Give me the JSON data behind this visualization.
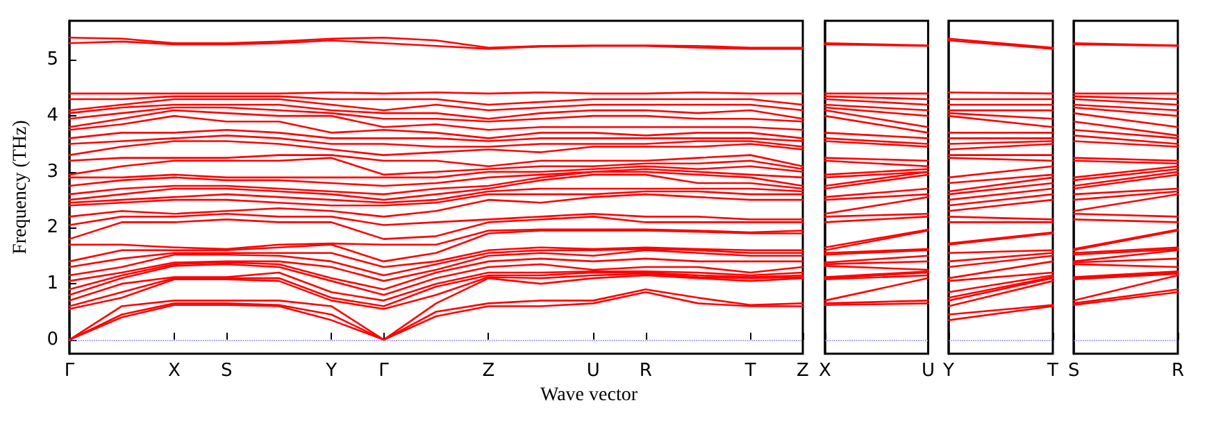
{
  "chart_data": [
    {
      "type": "line",
      "ylabel": "Frequency (THz)",
      "xlabel": "Wave vector",
      "categories": [
        "Γ",
        null,
        "X",
        "S",
        null,
        "Y",
        "Γ",
        null,
        "Z",
        null,
        "U",
        "R",
        null,
        "T",
        "Z"
      ],
      "ylim": [
        -0.25,
        5.7
      ],
      "yticks": [
        0,
        1,
        2,
        3,
        4,
        5
      ],
      "ref_lines": [
        {
          "axis": "y",
          "value": 0,
          "label": null,
          "color": "#7777ee",
          "line_style": "dotted"
        }
      ],
      "series": [
        {
          "color": "#ff0000",
          "values": [
            0,
            0.4,
            0.62,
            0.62,
            0.6,
            0.35,
            0,
            0.42,
            0.6,
            0.6,
            0.65,
            0.85,
            0.65,
            0.6,
            0.6
          ]
        },
        {
          "color": "#ff0000",
          "values": [
            0,
            0.45,
            0.65,
            0.65,
            0.62,
            0.45,
            0,
            0.5,
            0.65,
            0.7,
            0.7,
            0.9,
            0.75,
            0.62,
            0.65
          ]
        },
        {
          "color": "#ff0000",
          "values": [
            0,
            0.6,
            0.7,
            0.7,
            0.7,
            0.6,
            0,
            0.65,
            1.1,
            1.0,
            1.1,
            1.15,
            1.1,
            1.05,
            1.1
          ]
        },
        {
          "color": "#ff0000",
          "values": [
            0.55,
            0.75,
            1.08,
            1.08,
            1.05,
            0.7,
            0.55,
            0.8,
            1.12,
            1.1,
            1.15,
            1.18,
            1.12,
            1.1,
            1.12
          ]
        },
        {
          "color": "#ff0000",
          "values": [
            0.6,
            0.85,
            1.1,
            1.1,
            1.1,
            0.75,
            0.6,
            0.95,
            1.15,
            1.15,
            1.2,
            1.2,
            1.15,
            1.12,
            1.15
          ]
        },
        {
          "color": "#ff0000",
          "values": [
            0.7,
            1.0,
            1.12,
            1.12,
            1.2,
            0.85,
            0.7,
            1.0,
            1.2,
            1.2,
            1.22,
            1.22,
            1.2,
            1.15,
            1.2
          ]
        },
        {
          "color": "#ff0000",
          "values": [
            0.8,
            1.1,
            1.32,
            1.35,
            1.3,
            1.05,
            0.8,
            1.1,
            1.3,
            1.35,
            1.25,
            1.3,
            1.3,
            1.2,
            1.3
          ]
        },
        {
          "color": "#ff0000",
          "values": [
            0.9,
            1.15,
            1.35,
            1.38,
            1.35,
            1.1,
            0.9,
            1.2,
            1.4,
            1.45,
            1.4,
            1.45,
            1.4,
            1.4,
            1.4
          ]
        },
        {
          "color": "#ff0000",
          "values": [
            1.05,
            1.2,
            1.38,
            1.4,
            1.4,
            1.3,
            1.05,
            1.25,
            1.5,
            1.55,
            1.5,
            1.6,
            1.55,
            1.5,
            1.5
          ]
        },
        {
          "color": "#ff0000",
          "values": [
            1.15,
            1.3,
            1.52,
            1.52,
            1.5,
            1.4,
            1.15,
            1.35,
            1.55,
            1.6,
            1.6,
            1.62,
            1.6,
            1.55,
            1.55
          ]
        },
        {
          "color": "#ff0000",
          "values": [
            1.3,
            1.45,
            1.55,
            1.55,
            1.55,
            1.55,
            1.3,
            1.4,
            1.6,
            1.65,
            1.62,
            1.65,
            1.62,
            1.6,
            1.6
          ]
        },
        {
          "color": "#ff0000",
          "values": [
            1.4,
            1.6,
            1.6,
            1.6,
            1.65,
            1.7,
            1.4,
            1.55,
            1.9,
            1.95,
            1.95,
            1.95,
            1.93,
            1.9,
            1.9
          ]
        },
        {
          "color": "#ff0000",
          "values": [
            1.7,
            1.7,
            1.65,
            1.62,
            1.7,
            1.72,
            1.7,
            1.7,
            1.95,
            1.97,
            1.97,
            1.97,
            1.95,
            1.92,
            1.95
          ]
        },
        {
          "color": "#ff0000",
          "values": [
            1.8,
            2.1,
            2.1,
            2.15,
            2.1,
            2.1,
            1.8,
            1.85,
            2.1,
            2.15,
            2.2,
            2.1,
            2.1,
            2.1,
            2.1
          ]
        },
        {
          "color": "#ff0000",
          "values": [
            2.05,
            2.2,
            2.2,
            2.25,
            2.2,
            2.2,
            2.05,
            2.1,
            2.15,
            2.2,
            2.25,
            2.2,
            2.2,
            2.15,
            2.15
          ]
        },
        {
          "color": "#ff0000",
          "values": [
            2.2,
            2.3,
            2.25,
            2.3,
            2.35,
            2.3,
            2.2,
            2.3,
            2.5,
            2.45,
            2.55,
            2.6,
            2.55,
            2.5,
            2.5
          ]
        },
        {
          "color": "#ff0000",
          "values": [
            2.4,
            2.45,
            2.5,
            2.5,
            2.45,
            2.4,
            2.4,
            2.45,
            2.6,
            2.6,
            2.6,
            2.65,
            2.65,
            2.6,
            2.6
          ]
        },
        {
          "color": "#ff0000",
          "values": [
            2.45,
            2.5,
            2.55,
            2.6,
            2.55,
            2.5,
            2.45,
            2.5,
            2.65,
            2.7,
            2.7,
            2.7,
            2.7,
            2.7,
            2.65
          ]
        },
        {
          "color": "#ff0000",
          "values": [
            2.5,
            2.6,
            2.7,
            2.7,
            2.65,
            2.6,
            2.5,
            2.6,
            2.7,
            2.85,
            2.95,
            2.95,
            2.8,
            2.8,
            2.7
          ]
        },
        {
          "color": "#ff0000",
          "values": [
            2.6,
            2.7,
            2.75,
            2.75,
            2.7,
            2.65,
            2.6,
            2.7,
            2.75,
            2.9,
            3.0,
            3.0,
            2.95,
            2.9,
            2.75
          ]
        },
        {
          "color": "#ff0000",
          "values": [
            2.75,
            2.85,
            2.9,
            2.85,
            2.85,
            2.8,
            2.75,
            2.8,
            2.9,
            2.95,
            3.0,
            3.05,
            3.0,
            2.95,
            2.9
          ]
        },
        {
          "color": "#ff0000",
          "values": [
            2.9,
            2.9,
            2.95,
            2.9,
            2.9,
            2.9,
            2.9,
            2.9,
            3.0,
            3.0,
            3.05,
            3.1,
            3.05,
            3.1,
            3.0
          ]
        },
        {
          "color": "#ff0000",
          "values": [
            2.95,
            3.1,
            3.2,
            3.2,
            3.2,
            3.25,
            2.95,
            3.0,
            3.05,
            3.1,
            3.1,
            3.15,
            3.15,
            3.2,
            3.05
          ]
        },
        {
          "color": "#ff0000",
          "values": [
            3.2,
            3.25,
            3.25,
            3.25,
            3.3,
            3.3,
            3.2,
            3.2,
            3.1,
            3.2,
            3.2,
            3.2,
            3.25,
            3.3,
            3.1
          ]
        },
        {
          "color": "#ff0000",
          "values": [
            3.3,
            3.45,
            3.55,
            3.55,
            3.5,
            3.4,
            3.3,
            3.35,
            3.4,
            3.35,
            3.45,
            3.45,
            3.45,
            3.5,
            3.4
          ]
        },
        {
          "color": "#ff0000",
          "values": [
            3.5,
            3.55,
            3.6,
            3.65,
            3.6,
            3.5,
            3.5,
            3.45,
            3.45,
            3.5,
            3.5,
            3.5,
            3.55,
            3.55,
            3.45
          ]
        },
        {
          "color": "#ff0000",
          "values": [
            3.6,
            3.7,
            3.7,
            3.75,
            3.7,
            3.6,
            3.6,
            3.6,
            3.55,
            3.6,
            3.6,
            3.6,
            3.6,
            3.6,
            3.55
          ]
        },
        {
          "color": "#ff0000",
          "values": [
            3.75,
            3.85,
            4.0,
            3.9,
            3.9,
            3.7,
            3.75,
            3.7,
            3.6,
            3.7,
            3.7,
            3.65,
            3.7,
            3.7,
            3.6
          ]
        },
        {
          "color": "#ff0000",
          "values": [
            3.8,
            3.95,
            4.1,
            4.05,
            4.0,
            4.0,
            3.8,
            3.85,
            3.75,
            3.8,
            3.8,
            3.8,
            3.8,
            3.8,
            3.75
          ]
        },
        {
          "color": "#ff0000",
          "values": [
            3.95,
            4.05,
            4.15,
            4.15,
            4.1,
            4.05,
            3.95,
            3.95,
            3.9,
            3.95,
            4.0,
            4.0,
            3.95,
            3.95,
            3.9
          ]
        },
        {
          "color": "#ff0000",
          "values": [
            4.05,
            4.15,
            4.2,
            4.2,
            4.2,
            4.1,
            4.05,
            4.05,
            3.95,
            4.05,
            4.1,
            4.1,
            4.05,
            4.1,
            3.95
          ]
        },
        {
          "color": "#ff0000",
          "values": [
            4.1,
            4.2,
            4.3,
            4.3,
            4.3,
            4.2,
            4.1,
            4.2,
            4.1,
            4.15,
            4.2,
            4.2,
            4.2,
            4.2,
            4.1
          ]
        },
        {
          "color": "#ff0000",
          "values": [
            4.3,
            4.3,
            4.35,
            4.35,
            4.35,
            4.3,
            4.3,
            4.3,
            4.2,
            4.25,
            4.3,
            4.3,
            4.3,
            4.3,
            4.2
          ]
        },
        {
          "color": "#ff0000",
          "values": [
            4.4,
            4.4,
            4.4,
            4.4,
            4.4,
            4.42,
            4.4,
            4.42,
            4.4,
            4.42,
            4.4,
            4.4,
            4.42,
            4.4,
            4.4
          ]
        },
        {
          "color": "#ff0000",
          "values": [
            5.3,
            5.33,
            5.28,
            5.28,
            5.3,
            5.35,
            5.3,
            5.25,
            5.2,
            5.24,
            5.25,
            5.25,
            5.22,
            5.2,
            5.2
          ]
        },
        {
          "color": "#ff0000",
          "values": [
            5.4,
            5.38,
            5.3,
            5.3,
            5.33,
            5.38,
            5.4,
            5.35,
            5.22,
            5.25,
            5.26,
            5.26,
            5.25,
            5.22,
            5.22
          ]
        }
      ]
    },
    {
      "type": "line",
      "tick_labels": "x",
      "categories": [
        "X",
        "U"
      ],
      "ylim": [
        -0.25,
        5.7
      ],
      "yticks": [
        0,
        1,
        2,
        3,
        4,
        5
      ],
      "ref_lines": [
        {
          "axis": "y",
          "value": 0,
          "label": null,
          "color": "#7777ee",
          "line_style": "dotted"
        }
      ],
      "series": [
        {
          "color": "#ff0000",
          "values": [
            0.62,
            0.65
          ]
        },
        {
          "color": "#ff0000",
          "values": [
            0.65,
            0.7
          ]
        },
        {
          "color": "#ff0000",
          "values": [
            0.7,
            1.1
          ]
        },
        {
          "color": "#ff0000",
          "values": [
            1.08,
            1.15
          ]
        },
        {
          "color": "#ff0000",
          "values": [
            1.1,
            1.2
          ]
        },
        {
          "color": "#ff0000",
          "values": [
            1.12,
            1.22
          ]
        },
        {
          "color": "#ff0000",
          "values": [
            1.32,
            1.25
          ]
        },
        {
          "color": "#ff0000",
          "values": [
            1.35,
            1.4
          ]
        },
        {
          "color": "#ff0000",
          "values": [
            1.38,
            1.5
          ]
        },
        {
          "color": "#ff0000",
          "values": [
            1.52,
            1.6
          ]
        },
        {
          "color": "#ff0000",
          "values": [
            1.55,
            1.62
          ]
        },
        {
          "color": "#ff0000",
          "values": [
            1.6,
            1.95
          ]
        },
        {
          "color": "#ff0000",
          "values": [
            1.65,
            1.97
          ]
        },
        {
          "color": "#ff0000",
          "values": [
            2.1,
            2.2
          ]
        },
        {
          "color": "#ff0000",
          "values": [
            2.2,
            2.25
          ]
        },
        {
          "color": "#ff0000",
          "values": [
            2.25,
            2.55
          ]
        },
        {
          "color": "#ff0000",
          "values": [
            2.5,
            2.6
          ]
        },
        {
          "color": "#ff0000",
          "values": [
            2.55,
            2.7
          ]
        },
        {
          "color": "#ff0000",
          "values": [
            2.7,
            2.95
          ]
        },
        {
          "color": "#ff0000",
          "values": [
            2.75,
            3.0
          ]
        },
        {
          "color": "#ff0000",
          "values": [
            2.9,
            3.0
          ]
        },
        {
          "color": "#ff0000",
          "values": [
            2.95,
            3.05
          ]
        },
        {
          "color": "#ff0000",
          "values": [
            3.2,
            3.1
          ]
        },
        {
          "color": "#ff0000",
          "values": [
            3.25,
            3.2
          ]
        },
        {
          "color": "#ff0000",
          "values": [
            3.55,
            3.45
          ]
        },
        {
          "color": "#ff0000",
          "values": [
            3.6,
            3.5
          ]
        },
        {
          "color": "#ff0000",
          "values": [
            3.7,
            3.6
          ]
        },
        {
          "color": "#ff0000",
          "values": [
            4.0,
            3.7
          ]
        },
        {
          "color": "#ff0000",
          "values": [
            4.1,
            3.8
          ]
        },
        {
          "color": "#ff0000",
          "values": [
            4.15,
            4.0
          ]
        },
        {
          "color": "#ff0000",
          "values": [
            4.2,
            4.1
          ]
        },
        {
          "color": "#ff0000",
          "values": [
            4.3,
            4.2
          ]
        },
        {
          "color": "#ff0000",
          "values": [
            4.35,
            4.3
          ]
        },
        {
          "color": "#ff0000",
          "values": [
            4.4,
            4.4
          ]
        },
        {
          "color": "#ff0000",
          "values": [
            5.28,
            5.25
          ]
        },
        {
          "color": "#ff0000",
          "values": [
            5.3,
            5.26
          ]
        }
      ]
    },
    {
      "type": "line",
      "tick_labels": "x",
      "categories": [
        "Y",
        "T"
      ],
      "ylim": [
        -0.25,
        5.7
      ],
      "yticks": [
        0,
        1,
        2,
        3,
        4,
        5
      ],
      "ref_lines": [
        {
          "axis": "y",
          "value": 0,
          "label": null,
          "color": "#7777ee",
          "line_style": "dotted"
        }
      ],
      "series": [
        {
          "color": "#ff0000",
          "values": [
            0.35,
            0.6
          ]
        },
        {
          "color": "#ff0000",
          "values": [
            0.45,
            0.62
          ]
        },
        {
          "color": "#ff0000",
          "values": [
            0.6,
            1.05
          ]
        },
        {
          "color": "#ff0000",
          "values": [
            0.7,
            1.1
          ]
        },
        {
          "color": "#ff0000",
          "values": [
            0.75,
            1.12
          ]
        },
        {
          "color": "#ff0000",
          "values": [
            0.85,
            1.15
          ]
        },
        {
          "color": "#ff0000",
          "values": [
            1.05,
            1.2
          ]
        },
        {
          "color": "#ff0000",
          "values": [
            1.1,
            1.4
          ]
        },
        {
          "color": "#ff0000",
          "values": [
            1.3,
            1.5
          ]
        },
        {
          "color": "#ff0000",
          "values": [
            1.4,
            1.55
          ]
        },
        {
          "color": "#ff0000",
          "values": [
            1.55,
            1.6
          ]
        },
        {
          "color": "#ff0000",
          "values": [
            1.7,
            1.9
          ]
        },
        {
          "color": "#ff0000",
          "values": [
            1.72,
            1.92
          ]
        },
        {
          "color": "#ff0000",
          "values": [
            2.1,
            2.1
          ]
        },
        {
          "color": "#ff0000",
          "values": [
            2.2,
            2.15
          ]
        },
        {
          "color": "#ff0000",
          "values": [
            2.3,
            2.5
          ]
        },
        {
          "color": "#ff0000",
          "values": [
            2.4,
            2.6
          ]
        },
        {
          "color": "#ff0000",
          "values": [
            2.5,
            2.7
          ]
        },
        {
          "color": "#ff0000",
          "values": [
            2.6,
            2.8
          ]
        },
        {
          "color": "#ff0000",
          "values": [
            2.65,
            2.9
          ]
        },
        {
          "color": "#ff0000",
          "values": [
            2.8,
            2.95
          ]
        },
        {
          "color": "#ff0000",
          "values": [
            2.9,
            3.1
          ]
        },
        {
          "color": "#ff0000",
          "values": [
            3.25,
            3.2
          ]
        },
        {
          "color": "#ff0000",
          "values": [
            3.3,
            3.3
          ]
        },
        {
          "color": "#ff0000",
          "values": [
            3.4,
            3.5
          ]
        },
        {
          "color": "#ff0000",
          "values": [
            3.5,
            3.55
          ]
        },
        {
          "color": "#ff0000",
          "values": [
            3.6,
            3.6
          ]
        },
        {
          "color": "#ff0000",
          "values": [
            3.7,
            3.7
          ]
        },
        {
          "color": "#ff0000",
          "values": [
            4.0,
            3.8
          ]
        },
        {
          "color": "#ff0000",
          "values": [
            4.05,
            3.95
          ]
        },
        {
          "color": "#ff0000",
          "values": [
            4.1,
            4.1
          ]
        },
        {
          "color": "#ff0000",
          "values": [
            4.2,
            4.2
          ]
        },
        {
          "color": "#ff0000",
          "values": [
            4.3,
            4.3
          ]
        },
        {
          "color": "#ff0000",
          "values": [
            4.42,
            4.4
          ]
        },
        {
          "color": "#ff0000",
          "values": [
            5.35,
            5.2
          ]
        },
        {
          "color": "#ff0000",
          "values": [
            5.38,
            5.22
          ]
        }
      ]
    },
    {
      "type": "line",
      "tick_labels": "x",
      "categories": [
        "S",
        "R"
      ],
      "ylim": [
        -0.25,
        5.7
      ],
      "yticks": [
        0,
        1,
        2,
        3,
        4,
        5
      ],
      "ref_lines": [
        {
          "axis": "y",
          "value": 0,
          "label": null,
          "color": "#7777ee",
          "line_style": "dotted"
        }
      ],
      "series": [
        {
          "color": "#ff0000",
          "values": [
            0.62,
            0.85
          ]
        },
        {
          "color": "#ff0000",
          "values": [
            0.65,
            0.9
          ]
        },
        {
          "color": "#ff0000",
          "values": [
            0.7,
            1.15
          ]
        },
        {
          "color": "#ff0000",
          "values": [
            1.08,
            1.18
          ]
        },
        {
          "color": "#ff0000",
          "values": [
            1.1,
            1.2
          ]
        },
        {
          "color": "#ff0000",
          "values": [
            1.12,
            1.22
          ]
        },
        {
          "color": "#ff0000",
          "values": [
            1.35,
            1.3
          ]
        },
        {
          "color": "#ff0000",
          "values": [
            1.38,
            1.45
          ]
        },
        {
          "color": "#ff0000",
          "values": [
            1.4,
            1.6
          ]
        },
        {
          "color": "#ff0000",
          "values": [
            1.52,
            1.62
          ]
        },
        {
          "color": "#ff0000",
          "values": [
            1.55,
            1.65
          ]
        },
        {
          "color": "#ff0000",
          "values": [
            1.6,
            1.95
          ]
        },
        {
          "color": "#ff0000",
          "values": [
            1.62,
            1.97
          ]
        },
        {
          "color": "#ff0000",
          "values": [
            2.15,
            2.1
          ]
        },
        {
          "color": "#ff0000",
          "values": [
            2.25,
            2.2
          ]
        },
        {
          "color": "#ff0000",
          "values": [
            2.3,
            2.6
          ]
        },
        {
          "color": "#ff0000",
          "values": [
            2.5,
            2.65
          ]
        },
        {
          "color": "#ff0000",
          "values": [
            2.6,
            2.7
          ]
        },
        {
          "color": "#ff0000",
          "values": [
            2.7,
            2.95
          ]
        },
        {
          "color": "#ff0000",
          "values": [
            2.75,
            3.0
          ]
        },
        {
          "color": "#ff0000",
          "values": [
            2.85,
            3.05
          ]
        },
        {
          "color": "#ff0000",
          "values": [
            2.9,
            3.1
          ]
        },
        {
          "color": "#ff0000",
          "values": [
            3.2,
            3.15
          ]
        },
        {
          "color": "#ff0000",
          "values": [
            3.25,
            3.2
          ]
        },
        {
          "color": "#ff0000",
          "values": [
            3.55,
            3.45
          ]
        },
        {
          "color": "#ff0000",
          "values": [
            3.65,
            3.5
          ]
        },
        {
          "color": "#ff0000",
          "values": [
            3.75,
            3.6
          ]
        },
        {
          "color": "#ff0000",
          "values": [
            3.9,
            3.65
          ]
        },
        {
          "color": "#ff0000",
          "values": [
            4.05,
            3.8
          ]
        },
        {
          "color": "#ff0000",
          "values": [
            4.15,
            4.0
          ]
        },
        {
          "color": "#ff0000",
          "values": [
            4.2,
            4.1
          ]
        },
        {
          "color": "#ff0000",
          "values": [
            4.3,
            4.2
          ]
        },
        {
          "color": "#ff0000",
          "values": [
            4.35,
            4.3
          ]
        },
        {
          "color": "#ff0000",
          "values": [
            4.4,
            4.4
          ]
        },
        {
          "color": "#ff0000",
          "values": [
            5.28,
            5.25
          ]
        },
        {
          "color": "#ff0000",
          "values": [
            5.3,
            5.26
          ]
        }
      ]
    }
  ]
}
